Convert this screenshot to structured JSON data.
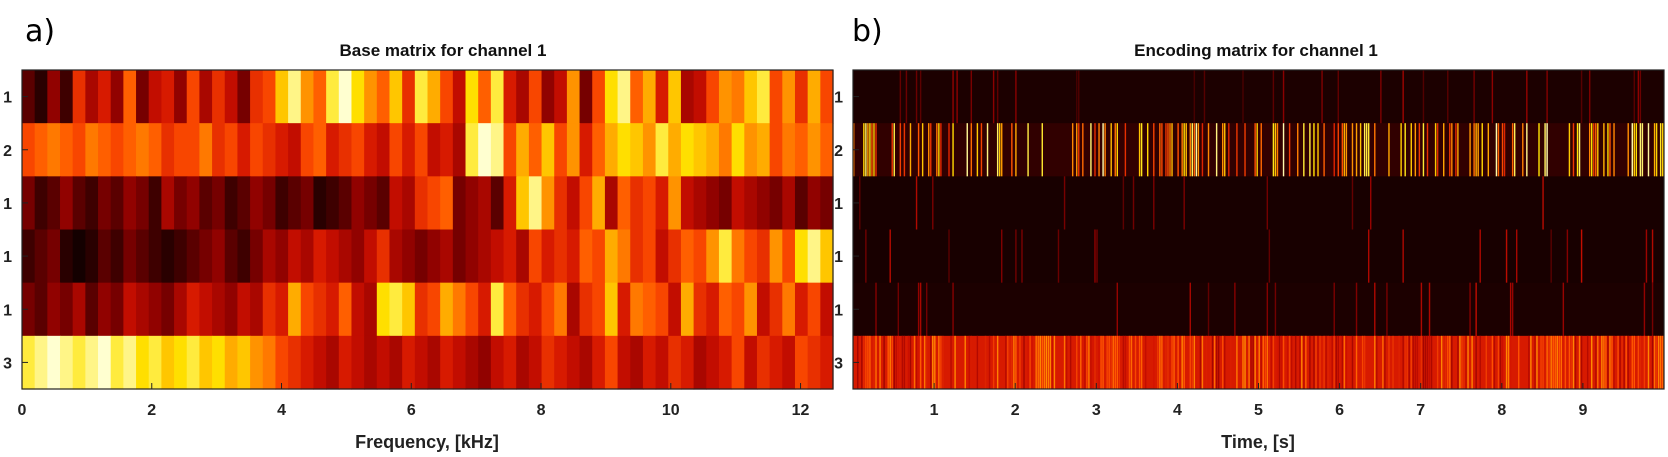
{
  "panel_labels": [
    "a)",
    "b)"
  ],
  "chart_data": [
    {
      "type": "heatmap",
      "title": "Base matrix for channel 1",
      "xlabel": "Frequency, [kHz]",
      "ylabel": "",
      "xlim": [
        0,
        12.5
      ],
      "xticks": [
        0,
        2,
        4,
        6,
        8,
        10,
        12
      ],
      "row_labels": [
        "1",
        "2",
        "1",
        "1",
        "1",
        "3"
      ],
      "colormap": [
        "#000000",
        "#3a0000",
        "#8a0000",
        "#d01000",
        "#ff5000",
        "#ff9a00",
        "#ffe300",
        "#ffffd0"
      ],
      "n_cols": 64,
      "rows": [
        [
          0.2,
          0.1,
          0.3,
          0.15,
          0.5,
          0.35,
          0.45,
          0.3,
          0.6,
          0.25,
          0.4,
          0.45,
          0.3,
          0.55,
          0.35,
          0.5,
          0.4,
          0.25,
          0.5,
          0.55,
          0.8,
          0.95,
          0.7,
          0.6,
          0.9,
          1.0,
          0.85,
          0.7,
          0.6,
          0.8,
          0.5,
          0.9,
          0.75,
          0.55,
          0.4,
          0.85,
          0.6,
          0.9,
          0.45,
          0.35,
          0.55,
          0.3,
          0.4,
          0.7,
          0.25,
          0.55,
          0.85,
          0.95,
          0.6,
          0.75,
          0.45,
          0.8,
          0.35,
          0.4,
          0.55,
          0.7,
          0.65,
          0.8,
          0.9,
          0.55,
          0.7,
          0.5,
          0.75,
          0.55
        ],
        [
          0.55,
          0.6,
          0.65,
          0.6,
          0.55,
          0.65,
          0.6,
          0.55,
          0.6,
          0.65,
          0.6,
          0.5,
          0.55,
          0.55,
          0.65,
          0.5,
          0.55,
          0.45,
          0.55,
          0.5,
          0.45,
          0.4,
          0.55,
          0.6,
          0.45,
          0.5,
          0.55,
          0.45,
          0.4,
          0.55,
          0.45,
          0.55,
          0.4,
          0.45,
          0.35,
          0.9,
          1.0,
          0.95,
          0.55,
          0.75,
          0.6,
          0.8,
          0.55,
          0.7,
          0.45,
          0.6,
          0.75,
          0.85,
          0.8,
          0.7,
          0.9,
          0.75,
          0.85,
          0.8,
          0.75,
          0.65,
          0.85,
          0.7,
          0.75,
          0.55,
          0.65,
          0.6,
          0.7,
          0.6
        ],
        [
          0.25,
          0.15,
          0.2,
          0.3,
          0.2,
          0.15,
          0.25,
          0.2,
          0.3,
          0.25,
          0.15,
          0.35,
          0.25,
          0.3,
          0.2,
          0.25,
          0.15,
          0.2,
          0.3,
          0.25,
          0.15,
          0.2,
          0.25,
          0.1,
          0.15,
          0.2,
          0.3,
          0.25,
          0.2,
          0.4,
          0.35,
          0.5,
          0.55,
          0.6,
          0.25,
          0.3,
          0.35,
          0.2,
          0.45,
          0.8,
          0.95,
          0.7,
          0.5,
          0.4,
          0.55,
          0.75,
          0.35,
          0.6,
          0.5,
          0.55,
          0.45,
          0.7,
          0.4,
          0.35,
          0.3,
          0.25,
          0.4,
          0.35,
          0.3,
          0.25,
          0.35,
          0.2,
          0.3,
          0.25
        ],
        [
          0.15,
          0.2,
          0.25,
          0.1,
          0.05,
          0.1,
          0.2,
          0.15,
          0.25,
          0.2,
          0.15,
          0.1,
          0.15,
          0.2,
          0.25,
          0.3,
          0.2,
          0.15,
          0.25,
          0.35,
          0.3,
          0.4,
          0.35,
          0.45,
          0.4,
          0.35,
          0.3,
          0.4,
          0.5,
          0.35,
          0.3,
          0.25,
          0.3,
          0.35,
          0.25,
          0.3,
          0.35,
          0.4,
          0.45,
          0.35,
          0.55,
          0.45,
          0.5,
          0.45,
          0.6,
          0.55,
          0.75,
          0.65,
          0.5,
          0.55,
          0.4,
          0.5,
          0.6,
          0.55,
          0.7,
          0.9,
          0.65,
          0.55,
          0.5,
          0.7,
          0.55,
          0.85,
          0.95,
          0.8
        ],
        [
          0.25,
          0.2,
          0.3,
          0.25,
          0.35,
          0.2,
          0.3,
          0.25,
          0.4,
          0.35,
          0.3,
          0.25,
          0.35,
          0.45,
          0.4,
          0.35,
          0.3,
          0.4,
          0.35,
          0.5,
          0.45,
          0.75,
          0.55,
          0.5,
          0.45,
          0.6,
          0.4,
          0.35,
          0.85,
          0.9,
          0.8,
          0.5,
          0.55,
          0.75,
          0.65,
          0.55,
          0.45,
          0.9,
          0.6,
          0.5,
          0.45,
          0.55,
          0.65,
          0.35,
          0.5,
          0.55,
          0.8,
          0.45,
          0.65,
          0.6,
          0.55,
          0.4,
          0.75,
          0.5,
          0.45,
          0.6,
          0.55,
          0.7,
          0.4,
          0.5,
          0.65,
          0.45,
          0.55,
          0.4
        ],
        [
          0.9,
          0.95,
          1.0,
          0.95,
          0.9,
          0.95,
          1.0,
          0.9,
          0.95,
          0.85,
          0.9,
          0.8,
          0.85,
          0.9,
          0.8,
          0.85,
          0.75,
          0.8,
          0.7,
          0.65,
          0.55,
          0.5,
          0.45,
          0.4,
          0.35,
          0.45,
          0.4,
          0.35,
          0.4,
          0.35,
          0.45,
          0.4,
          0.35,
          0.45,
          0.4,
          0.35,
          0.3,
          0.4,
          0.45,
          0.35,
          0.4,
          0.5,
          0.45,
          0.4,
          0.35,
          0.45,
          0.55,
          0.4,
          0.35,
          0.45,
          0.4,
          0.5,
          0.45,
          0.35,
          0.4,
          0.45,
          0.55,
          0.4,
          0.5,
          0.45,
          0.4,
          0.55,
          0.5,
          0.45
        ]
      ]
    },
    {
      "type": "heatmap",
      "title": "Encoding matrix for channel 1",
      "xlabel": "Time, [s]",
      "ylabel": "",
      "xlim": [
        0,
        10
      ],
      "xticks": [
        1,
        2,
        3,
        4,
        5,
        6,
        7,
        8,
        9
      ],
      "row_labels": [
        "1",
        "2",
        "1",
        "1",
        "1",
        "3"
      ],
      "colormap": [
        "#000000",
        "#3a0000",
        "#8a0000",
        "#d01000",
        "#ff5000",
        "#ff9a00",
        "#ffe300",
        "#ffffd0"
      ],
      "row_profiles": [
        {
          "base": 0.07,
          "line_prob": 0.07,
          "line_level": 0.3,
          "seed": 11
        },
        {
          "base": 0.12,
          "line_prob": 0.35,
          "line_level": 0.85,
          "seed": 23
        },
        {
          "base": 0.06,
          "line_prob": 0.04,
          "line_level": 0.35,
          "seed": 37
        },
        {
          "base": 0.06,
          "line_prob": 0.05,
          "line_level": 0.35,
          "seed": 41
        },
        {
          "base": 0.07,
          "line_prob": 0.06,
          "line_level": 0.35,
          "seed": 53
        },
        {
          "base": 0.45,
          "line_prob": 0.65,
          "line_level": 0.6,
          "seed": 67
        }
      ]
    }
  ]
}
